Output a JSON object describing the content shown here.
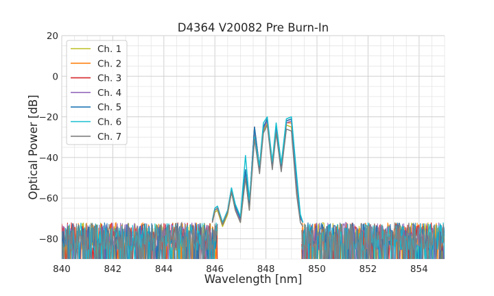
{
  "chart_data": {
    "type": "line",
    "title": "D4364 V20082 Pre Burn-In",
    "xlabel": "Wavelength [nm]",
    "ylabel": "Optical Power [dB]",
    "xlim": [
      840,
      855
    ],
    "ylim": [
      -90,
      20
    ],
    "xticks": [
      840,
      842,
      844,
      846,
      848,
      850,
      852,
      854
    ],
    "yticks": [
      20,
      0,
      -20,
      -40,
      -60,
      -80
    ],
    "ytick_labels": [
      "20",
      "0",
      "−20",
      "−40",
      "−60",
      "−80"
    ],
    "grid": true,
    "legend_position": "top-left",
    "noise_floor": {
      "x_range": [
        840,
        846.1
      ],
      "x_range_right": [
        849.4,
        855
      ],
      "level_top": -70,
      "level_bottom": -90
    },
    "series": [
      {
        "name": "Ch. 1",
        "color": "#bcbd22",
        "x": [
          845.9,
          846.0,
          846.1,
          846.3,
          846.5,
          846.65,
          846.8,
          847.0,
          847.2,
          847.35,
          847.55,
          847.75,
          847.9,
          848.05,
          848.25,
          848.4,
          848.6,
          848.8,
          849.0,
          849.2,
          849.35,
          849.45
        ],
        "y": [
          -72,
          -67,
          -66,
          -74,
          -68,
          -57,
          -66,
          -72,
          -50,
          -66,
          -27,
          -47,
          -27,
          -23,
          -45,
          -27,
          -46,
          -24,
          -25,
          -56,
          -70,
          -72
        ]
      },
      {
        "name": "Ch. 2",
        "color": "#ff7f0e",
        "x": [
          845.9,
          846.0,
          846.1,
          846.3,
          846.5,
          846.65,
          846.8,
          847.0,
          847.2,
          847.35,
          847.55,
          847.75,
          847.9,
          848.05,
          848.25,
          848.4,
          848.6,
          848.8,
          849.0,
          849.2,
          849.35,
          849.45
        ],
        "y": [
          -72,
          -66,
          -65,
          -73,
          -67,
          -56,
          -65,
          -71,
          -49,
          -65,
          -26,
          -46,
          -26,
          -22,
          -44,
          -26,
          -45,
          -23,
          -23,
          -52,
          -70,
          -72
        ]
      },
      {
        "name": "Ch. 3",
        "color": "#d62728",
        "x": [
          845.9,
          846.0,
          846.1,
          846.3,
          846.5,
          846.65,
          846.8,
          847.0,
          847.2,
          847.35,
          847.55,
          847.75,
          847.9,
          848.05,
          848.25,
          848.4,
          848.6,
          848.8,
          849.0,
          849.2,
          849.35,
          849.45
        ],
        "y": [
          -72,
          -66,
          -65,
          -73,
          -67,
          -56,
          -65,
          -71,
          -48,
          -64,
          -25,
          -45,
          -25,
          -21,
          -43,
          -25,
          -44,
          -22,
          -21,
          -50,
          -69,
          -72
        ]
      },
      {
        "name": "Ch. 4",
        "color": "#9467bd",
        "x": [
          845.9,
          846.0,
          846.1,
          846.3,
          846.5,
          846.65,
          846.8,
          847.0,
          847.2,
          847.35,
          847.55,
          847.75,
          847.9,
          848.05,
          848.25,
          848.4,
          848.6,
          848.8,
          849.0,
          849.2,
          849.35,
          849.45
        ],
        "y": [
          -72,
          -66,
          -65,
          -73,
          -67,
          -57,
          -65,
          -71,
          -49,
          -65,
          -26,
          -46,
          -26,
          -22,
          -44,
          -26,
          -45,
          -23,
          -22,
          -52,
          -70,
          -72
        ]
      },
      {
        "name": "Ch. 5",
        "color": "#1f77b4",
        "x": [
          845.9,
          846.0,
          846.1,
          846.3,
          846.5,
          846.65,
          846.8,
          847.0,
          847.2,
          847.35,
          847.55,
          847.75,
          847.9,
          848.05,
          848.25,
          848.4,
          848.6,
          848.8,
          849.0,
          849.2,
          849.35,
          849.45
        ],
        "y": [
          -71,
          -65,
          -64,
          -72,
          -66,
          -55,
          -64,
          -70,
          -46,
          -63,
          -25,
          -45,
          -25,
          -21,
          -43,
          -24,
          -44,
          -22,
          -21,
          -50,
          -69,
          -72
        ]
      },
      {
        "name": "Ch. 6",
        "color": "#17becf",
        "x": [
          845.9,
          846.0,
          846.1,
          846.3,
          846.5,
          846.65,
          846.8,
          847.0,
          847.2,
          847.35,
          847.55,
          847.75,
          847.9,
          848.05,
          848.25,
          848.4,
          848.6,
          848.8,
          849.0,
          849.2,
          849.35,
          849.45
        ],
        "y": [
          -71,
          -65,
          -64,
          -72,
          -66,
          -55,
          -63,
          -69,
          -39,
          -61,
          -30,
          -44,
          -23,
          -20,
          -42,
          -23,
          -43,
          -21,
          -20,
          -48,
          -68,
          -72
        ]
      },
      {
        "name": "Ch. 7",
        "color": "#7f7f7f",
        "x": [
          845.9,
          846.0,
          846.1,
          846.3,
          846.5,
          846.65,
          846.8,
          847.0,
          847.2,
          847.35,
          847.55,
          847.75,
          847.9,
          848.05,
          848.25,
          848.4,
          848.6,
          848.8,
          849.0,
          849.2,
          849.35,
          849.45
        ],
        "y": [
          -72,
          -66,
          -65,
          -73,
          -67,
          -57,
          -66,
          -72,
          -50,
          -66,
          -31,
          -48,
          -28,
          -24,
          -46,
          -28,
          -47,
          -26,
          -27,
          -58,
          -72,
          -74
        ]
      }
    ]
  }
}
